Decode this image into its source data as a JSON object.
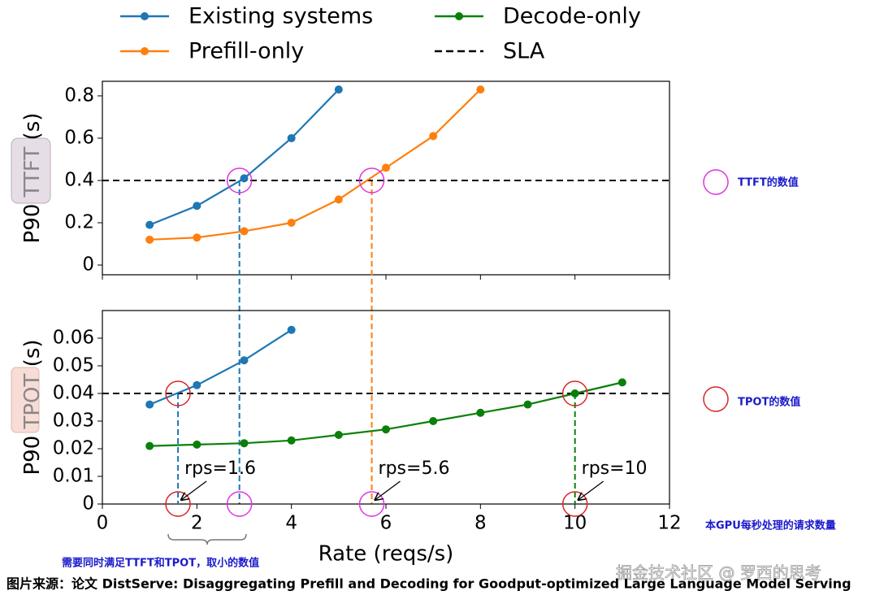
{
  "chart_data": [
    {
      "type": "line",
      "y_label_parts": [
        "P90 ",
        "TTFT",
        " (s)"
      ],
      "xlim": [
        0,
        12
      ],
      "xticks": [
        0,
        2,
        4,
        6,
        8,
        10,
        12
      ],
      "ylim": [
        -0.046,
        0.869
      ],
      "yticks": [
        0,
        0.2,
        0.4,
        0.6,
        0.8
      ],
      "series": [
        {
          "name": "Existing systems",
          "color": "#1f77b4",
          "x": [
            1,
            2,
            3,
            4,
            5
          ],
          "values": [
            0.19,
            0.28,
            0.41,
            0.6,
            0.83
          ]
        },
        {
          "name": "Prefill-only",
          "color": "#ff7f0e",
          "x": [
            1,
            2,
            3,
            4,
            5,
            6,
            7,
            8
          ],
          "values": [
            0.12,
            0.13,
            0.16,
            0.2,
            0.31,
            0.46,
            0.61,
            0.83
          ]
        }
      ],
      "sla": {
        "name": "SLA",
        "value": 0.4
      },
      "highlights": [
        {
          "x": 2.9,
          "y": 0.4,
          "color": "#e033e0"
        },
        {
          "x": 5.7,
          "y": 0.4,
          "color": "#e033e0"
        }
      ],
      "drop_lines": [
        {
          "x": 2.9,
          "top_y": 0.4,
          "color": "#1f77b4"
        },
        {
          "x": 5.7,
          "top_y": 0.4,
          "color": "#ff7f0e"
        }
      ]
    },
    {
      "type": "line",
      "y_label_parts": [
        "P90 ",
        "TPOT",
        " (s)"
      ],
      "x_label": "Rate (reqs/s)",
      "xlim": [
        0,
        12
      ],
      "xticks": [
        0,
        2,
        4,
        6,
        8,
        10,
        12
      ],
      "ylim": [
        0,
        0.07
      ],
      "yticks": [
        0,
        0.01,
        0.02,
        0.03,
        0.04,
        0.05,
        0.06
      ],
      "series": [
        {
          "name": "Existing systems",
          "color": "#1f77b4",
          "x": [
            1,
            2,
            3,
            4
          ],
          "values": [
            0.036,
            0.043,
            0.052,
            0.063
          ]
        },
        {
          "name": "Decode-only",
          "color": "#0a800a",
          "x": [
            1,
            2,
            3,
            4,
            5,
            6,
            7,
            8,
            9,
            10,
            11
          ],
          "values": [
            0.021,
            0.0215,
            0.022,
            0.023,
            0.025,
            0.027,
            0.03,
            0.033,
            0.036,
            0.04,
            0.044
          ]
        }
      ],
      "sla": {
        "value": 0.04
      },
      "highlights": [
        {
          "x": 1.6,
          "y": 0.04,
          "color": "#d62728"
        },
        {
          "x": 10,
          "y": 0.04,
          "color": "#d62728"
        },
        {
          "x": 1.6,
          "y": 0,
          "color": "#d62728"
        },
        {
          "x": 2.9,
          "y": 0,
          "color": "#e033e0"
        },
        {
          "x": 5.7,
          "y": 0,
          "color": "#e033e0"
        },
        {
          "x": 10,
          "y": 0,
          "color": "#d62728"
        }
      ],
      "drop_lines": [
        {
          "x": 1.6,
          "top_y": 0.04,
          "color": "#1f77b4"
        },
        {
          "x": 10,
          "top_y": 0.04,
          "color": "#0a800a"
        }
      ],
      "annotations": [
        {
          "text": "rps=1.6",
          "x": 1.6
        },
        {
          "text": "rps=5.6",
          "x": 5.7
        },
        {
          "text": "rps=10",
          "x": 10
        }
      ]
    }
  ],
  "notes": {
    "ttft": "TTFT的数值",
    "tpot": "TPOT的数值",
    "rate": "本GPU每秒处理的请求数量",
    "min": "需要同时满足TTFT和TPOT，取小的数值"
  },
  "caption": "图片来源：论文 DistServe: Disaggregating Prefill and Decoding for Goodput-optimized Large Language Model Serving",
  "watermark": "掘金技术社区 @ 罗西的思考"
}
